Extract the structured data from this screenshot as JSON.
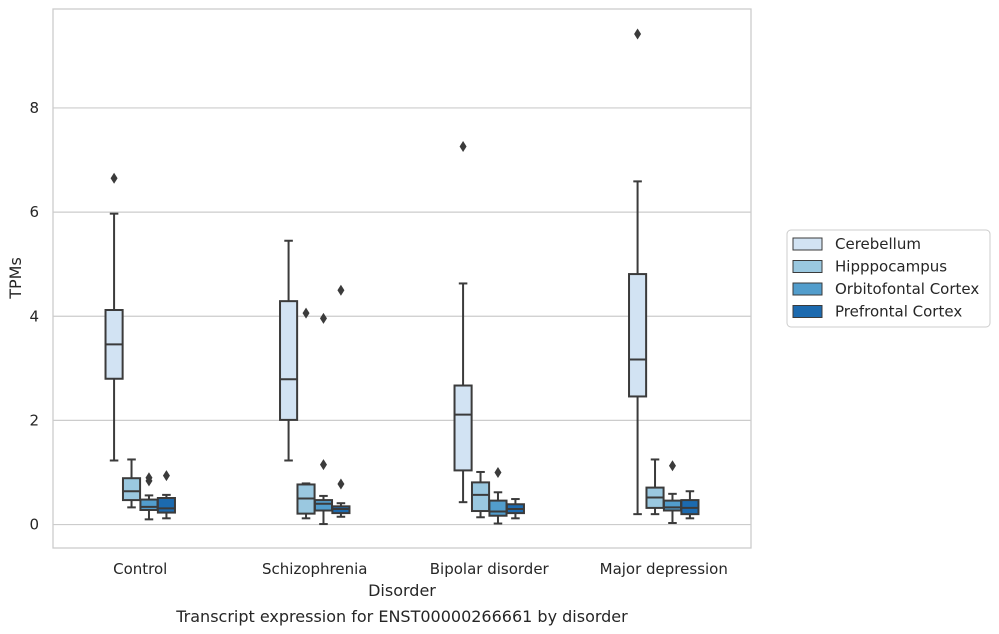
{
  "chart_data": {
    "type": "boxplot",
    "caption": "Transcript expression for ENST00000266661 by disorder",
    "xlabel": "Disorder",
    "ylabel": "TPMs",
    "ylim": [
      -0.45,
      9.9
    ],
    "yticks": [
      0,
      2,
      4,
      6,
      8
    ],
    "grid": "horizontal",
    "legend_position": "right",
    "categories": [
      "Control",
      "Schizophrenia",
      "Bipolar disorder",
      "Major depression"
    ],
    "series": [
      {
        "name": "Cerebellum",
        "color": "#d2e3f3",
        "boxes": [
          {
            "whislo": 1.23,
            "q1": 2.8,
            "med": 3.46,
            "q3": 4.12,
            "whishi": 5.97,
            "fliers": [
              6.65
            ]
          },
          {
            "whislo": 1.23,
            "q1": 2.01,
            "med": 2.79,
            "q3": 4.29,
            "whishi": 5.45,
            "fliers": []
          },
          {
            "whislo": 0.43,
            "q1": 1.04,
            "med": 2.11,
            "q3": 2.67,
            "whishi": 4.63,
            "fliers": [
              7.26
            ]
          },
          {
            "whislo": 0.2,
            "q1": 2.46,
            "med": 3.17,
            "q3": 4.81,
            "whishi": 6.59,
            "fliers": [
              9.42
            ]
          }
        ]
      },
      {
        "name": "Hipppocampus",
        "color": "#9ac8e0",
        "boxes": [
          {
            "whislo": 0.33,
            "q1": 0.47,
            "med": 0.64,
            "q3": 0.89,
            "whishi": 1.25,
            "fliers": []
          },
          {
            "whislo": 0.12,
            "q1": 0.21,
            "med": 0.5,
            "q3": 0.77,
            "whishi": 0.79,
            "fliers": [
              4.06
            ]
          },
          {
            "whislo": 0.14,
            "q1": 0.26,
            "med": 0.57,
            "q3": 0.81,
            "whishi": 1.01,
            "fliers": []
          },
          {
            "whislo": 0.2,
            "q1": 0.32,
            "med": 0.52,
            "q3": 0.71,
            "whishi": 1.25,
            "fliers": []
          }
        ]
      },
      {
        "name": "Orbitofontal Cortex",
        "color": "#529dcc",
        "boxes": [
          {
            "whislo": 0.1,
            "q1": 0.28,
            "med": 0.34,
            "q3": 0.48,
            "whishi": 0.56,
            "fliers": [
              0.84,
              0.9
            ]
          },
          {
            "whislo": 0.01,
            "q1": 0.27,
            "med": 0.4,
            "q3": 0.47,
            "whishi": 0.55,
            "fliers": [
              1.15,
              3.96
            ]
          },
          {
            "whislo": 0.02,
            "q1": 0.17,
            "med": 0.25,
            "q3": 0.46,
            "whishi": 0.62,
            "fliers": [
              1.0
            ]
          },
          {
            "whislo": 0.03,
            "q1": 0.27,
            "med": 0.33,
            "q3": 0.46,
            "whishi": 0.59,
            "fliers": [
              1.13
            ]
          }
        ]
      },
      {
        "name": "Prefrontal Cortex",
        "color": "#1c6aaf",
        "boxes": [
          {
            "whislo": 0.12,
            "q1": 0.23,
            "med": 0.31,
            "q3": 0.51,
            "whishi": 0.57,
            "fliers": [
              0.94
            ]
          },
          {
            "whislo": 0.15,
            "q1": 0.22,
            "med": 0.3,
            "q3": 0.35,
            "whishi": 0.41,
            "fliers": [
              0.78,
              4.5
            ]
          },
          {
            "whislo": 0.12,
            "q1": 0.22,
            "med": 0.3,
            "q3": 0.39,
            "whishi": 0.49,
            "fliers": []
          },
          {
            "whislo": 0.12,
            "q1": 0.2,
            "med": 0.32,
            "q3": 0.47,
            "whishi": 0.64,
            "fliers": []
          }
        ]
      }
    ]
  },
  "style": {
    "axes_edge": "#cccccc",
    "grid": "#cccccc",
    "line": "#3b3b3b",
    "background": "#ffffff"
  }
}
